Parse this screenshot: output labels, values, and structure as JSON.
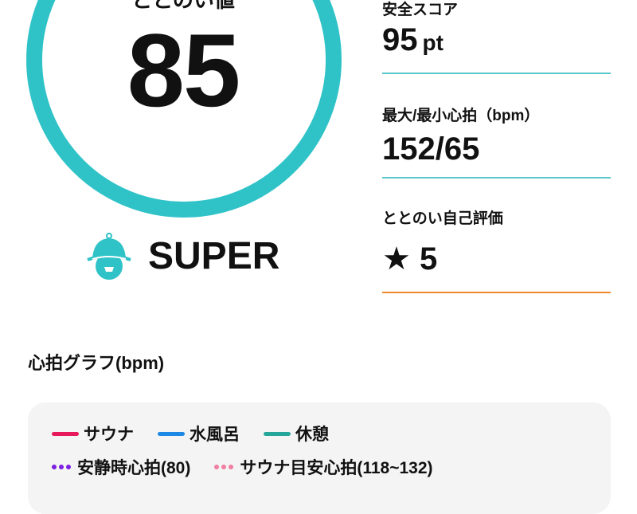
{
  "score_panel": {
    "label": "ととのい値",
    "score": "85",
    "ring_color": "#2fc3c8",
    "rank_icon": "bell-helmet-face-icon",
    "rank": "SUPER"
  },
  "stats": [
    {
      "label": "安全スコア",
      "value": "95",
      "unit": "pt",
      "divider_color": "#5bc6cb"
    },
    {
      "label": "最大/最小心拍（bpm）",
      "value": "152/65",
      "divider_color": "#5bc6cb"
    },
    {
      "label": "ととのい自己評価",
      "value": "★ 5",
      "divider_color": "#f08a2c"
    }
  ],
  "chart": {
    "title": "心拍グラフ(bpm)",
    "legend": [
      {
        "label": "サウナ",
        "color": "#e8195a",
        "style": "solid"
      },
      {
        "label": "水風呂",
        "color": "#1e88e5",
        "style": "solid"
      },
      {
        "label": "休憩",
        "color": "#26a69a",
        "style": "solid"
      },
      {
        "label": "安静時心拍(80)",
        "color": "#7b1fe0",
        "style": "dotted"
      },
      {
        "label": "サウナ目安心拍(118~132)",
        "color": "#f07ea0",
        "style": "dotted"
      }
    ]
  }
}
